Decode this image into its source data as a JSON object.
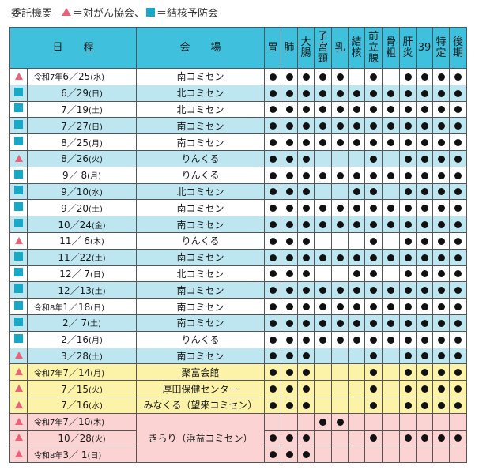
{
  "legend": {
    "label": "委託機関",
    "items": [
      {
        "marker": "triangle",
        "text": "＝対がん協会、",
        "color": "#e8627a"
      },
      {
        "marker": "square",
        "text": "＝結核予防会",
        "color": "#18a9c9"
      }
    ]
  },
  "header": {
    "date": "日　　程",
    "venue": "会　　場",
    "columns": [
      [
        "胃"
      ],
      [
        "肺"
      ],
      [
        "大",
        "腸"
      ],
      [
        "子",
        "宮",
        "頸"
      ],
      [
        "乳"
      ],
      [
        "結",
        "核"
      ],
      [
        "前",
        "立",
        "腺"
      ],
      [
        "骨",
        "粗"
      ],
      [
        "肝",
        "炎"
      ],
      [
        "39"
      ],
      [
        "特",
        "定"
      ],
      [
        "後",
        "期"
      ]
    ]
  },
  "rows": [
    {
      "mark": "triangle",
      "era": "令和7年",
      "date": "6／25",
      "day": "(水)",
      "venue": "南コミセン",
      "color": "white",
      "dots": [
        1,
        1,
        1,
        1,
        1,
        0,
        1,
        0,
        1,
        1,
        1,
        1
      ]
    },
    {
      "mark": "square",
      "era": "",
      "date": "6／29",
      "day": "(日)",
      "venue": "北コミセン",
      "color": "blue",
      "dots": [
        1,
        1,
        1,
        1,
        1,
        1,
        1,
        1,
        1,
        1,
        1,
        1
      ]
    },
    {
      "mark": "square",
      "era": "",
      "date": "7／19",
      "day": "(土)",
      "venue": "北コミセン",
      "color": "white",
      "dots": [
        1,
        1,
        1,
        1,
        1,
        1,
        1,
        1,
        1,
        1,
        1,
        1
      ]
    },
    {
      "mark": "square",
      "era": "",
      "date": "7／27",
      "day": "(日)",
      "venue": "南コミセン",
      "color": "blue",
      "dots": [
        1,
        1,
        1,
        1,
        1,
        1,
        1,
        1,
        1,
        1,
        1,
        1
      ]
    },
    {
      "mark": "square",
      "era": "",
      "date": "8／25",
      "day": "(月)",
      "venue": "南コミセン",
      "color": "white",
      "dots": [
        1,
        1,
        1,
        1,
        1,
        1,
        1,
        1,
        1,
        1,
        1,
        1
      ]
    },
    {
      "mark": "triangle",
      "era": "",
      "date": "8／26",
      "day": "(火)",
      "venue": "りんくる",
      "color": "blue",
      "dots": [
        1,
        1,
        1,
        0,
        0,
        0,
        1,
        0,
        1,
        1,
        1,
        1
      ]
    },
    {
      "mark": "square",
      "era": "",
      "date": "9／ 8",
      "day": "(月)",
      "venue": "りんくる",
      "color": "white",
      "dots": [
        1,
        1,
        1,
        1,
        1,
        1,
        1,
        1,
        1,
        1,
        1,
        1
      ]
    },
    {
      "mark": "square",
      "era": "",
      "date": "9／10",
      "day": "(水)",
      "venue": "北コミセン",
      "color": "blue",
      "dots": [
        1,
        1,
        1,
        0,
        0,
        1,
        1,
        0,
        1,
        1,
        1,
        1
      ]
    },
    {
      "mark": "square",
      "era": "",
      "date": "9／20",
      "day": "(土)",
      "venue": "南コミセン",
      "color": "white",
      "dots": [
        1,
        1,
        1,
        1,
        1,
        1,
        1,
        1,
        1,
        1,
        1,
        1
      ]
    },
    {
      "mark": "square",
      "era": "",
      "date": "10／24",
      "day": "(金)",
      "venue": "南コミセン",
      "color": "blue",
      "dots": [
        1,
        1,
        1,
        1,
        1,
        1,
        1,
        1,
        1,
        1,
        1,
        1
      ]
    },
    {
      "mark": "triangle",
      "era": "",
      "date": "11／ 6",
      "day": "(木)",
      "venue": "りんくる",
      "color": "white",
      "dots": [
        1,
        1,
        1,
        0,
        0,
        0,
        1,
        0,
        1,
        1,
        1,
        1
      ]
    },
    {
      "mark": "square",
      "era": "",
      "date": "11／22",
      "day": "(土)",
      "venue": "南コミセン",
      "color": "blue",
      "dots": [
        1,
        1,
        1,
        1,
        1,
        1,
        1,
        1,
        1,
        1,
        1,
        1
      ]
    },
    {
      "mark": "square",
      "era": "",
      "date": "12／ 7",
      "day": "(日)",
      "venue": "北コミセン",
      "color": "white",
      "dots": [
        1,
        1,
        1,
        0,
        0,
        1,
        1,
        0,
        1,
        1,
        1,
        1
      ]
    },
    {
      "mark": "square",
      "era": "",
      "date": "12／13",
      "day": "(土)",
      "venue": "南コミセン",
      "color": "blue",
      "dots": [
        1,
        1,
        1,
        1,
        1,
        1,
        1,
        1,
        1,
        1,
        1,
        1
      ]
    },
    {
      "mark": "square",
      "era": "令和8年",
      "date": "1／18",
      "day": "(日)",
      "venue": "南コミセン",
      "color": "white",
      "dots": [
        1,
        1,
        1,
        1,
        1,
        1,
        1,
        1,
        1,
        1,
        1,
        1
      ]
    },
    {
      "mark": "square",
      "era": "",
      "date": "2／ 7",
      "day": "(土)",
      "venue": "南コミセン",
      "color": "blue",
      "dots": [
        1,
        1,
        1,
        1,
        1,
        1,
        1,
        1,
        1,
        1,
        1,
        1
      ]
    },
    {
      "mark": "square",
      "era": "",
      "date": "2／16",
      "day": "(月)",
      "venue": "りんくる",
      "color": "white",
      "dots": [
        1,
        1,
        1,
        1,
        1,
        1,
        1,
        1,
        1,
        1,
        1,
        1
      ]
    },
    {
      "mark": "triangle",
      "era": "",
      "date": "3／28",
      "day": "(土)",
      "venue": "南コミセン",
      "color": "blue",
      "dots": [
        1,
        1,
        1,
        0,
        0,
        0,
        1,
        0,
        1,
        1,
        1,
        1
      ]
    },
    {
      "mark": "triangle",
      "era": "令和7年",
      "date": "7／14",
      "day": "(月)",
      "venue": "聚富会館",
      "color": "yellow",
      "dots": [
        1,
        1,
        1,
        0,
        0,
        0,
        1,
        0,
        1,
        1,
        1,
        1
      ]
    },
    {
      "mark": "triangle",
      "era": "",
      "date": "7／15",
      "day": "(火)",
      "venue": "厚田保健センター",
      "color": "yellow",
      "dots": [
        1,
        1,
        1,
        0,
        0,
        0,
        1,
        0,
        1,
        1,
        1,
        1
      ]
    },
    {
      "mark": "triangle",
      "era": "",
      "date": "7／16",
      "day": "(水)",
      "venue": "みなくる（望来コミセン）",
      "color": "yellow",
      "dots": [
        1,
        1,
        1,
        0,
        0,
        0,
        1,
        0,
        1,
        1,
        1,
        1
      ]
    },
    {
      "mark": "triangle",
      "era": "令和7年",
      "date": "7／10",
      "day": "(木)",
      "venue": "きらり（浜益コミセン）",
      "color": "pink",
      "dots": [
        0,
        0,
        0,
        1,
        1,
        0,
        0,
        0,
        0,
        0,
        0,
        0
      ]
    },
    {
      "mark": "triangle",
      "era": "",
      "date": "10／28",
      "day": "(火)",
      "venue": "",
      "color": "pink",
      "dots": [
        1,
        1,
        1,
        0,
        0,
        0,
        1,
        0,
        1,
        1,
        1,
        1
      ]
    },
    {
      "mark": "triangle",
      "era": "令和8年",
      "date": "3／ 1",
      "day": "(日)",
      "venue": "",
      "color": "pink",
      "dots": [
        1,
        1,
        1,
        0,
        0,
        0,
        0,
        0,
        0,
        0,
        0,
        0
      ]
    }
  ]
}
